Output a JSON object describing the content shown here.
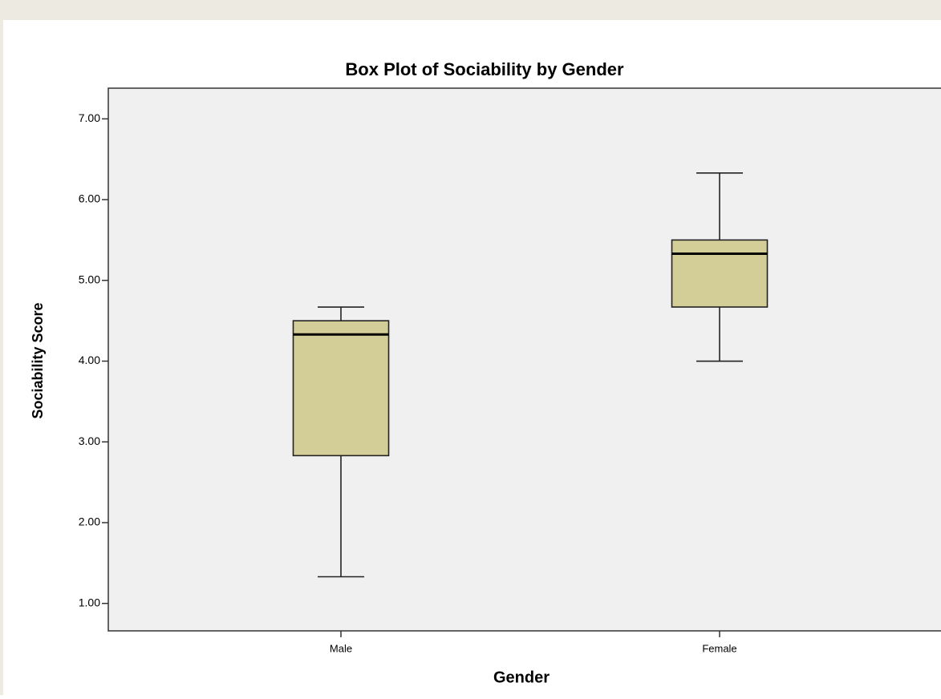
{
  "chart_data": {
    "type": "box",
    "title": "Box Plot of Sociability by Gender",
    "x_label": "Gender",
    "y_label": "Sociability Score",
    "categories": [
      "Male",
      "Female"
    ],
    "boxes": [
      {
        "min": 1.33,
        "q1": 2.83,
        "median": 4.33,
        "q3": 4.5,
        "max": 4.67
      },
      {
        "min": 4.0,
        "q1": 4.67,
        "median": 5.33,
        "q3": 5.5,
        "max": 6.33
      }
    ],
    "color": "#d3ce97",
    "ylim": [
      0.66,
      7.38
    ],
    "yticks": [
      {
        "value": 1,
        "label": "1.00"
      },
      {
        "value": 2,
        "label": "2.00"
      },
      {
        "value": 3,
        "label": "3.00"
      },
      {
        "value": 4,
        "label": "4.00"
      },
      {
        "value": 5,
        "label": "5.00"
      },
      {
        "value": 6,
        "label": "6.00"
      },
      {
        "value": 7,
        "label": "7.00"
      }
    ],
    "grid": false
  }
}
